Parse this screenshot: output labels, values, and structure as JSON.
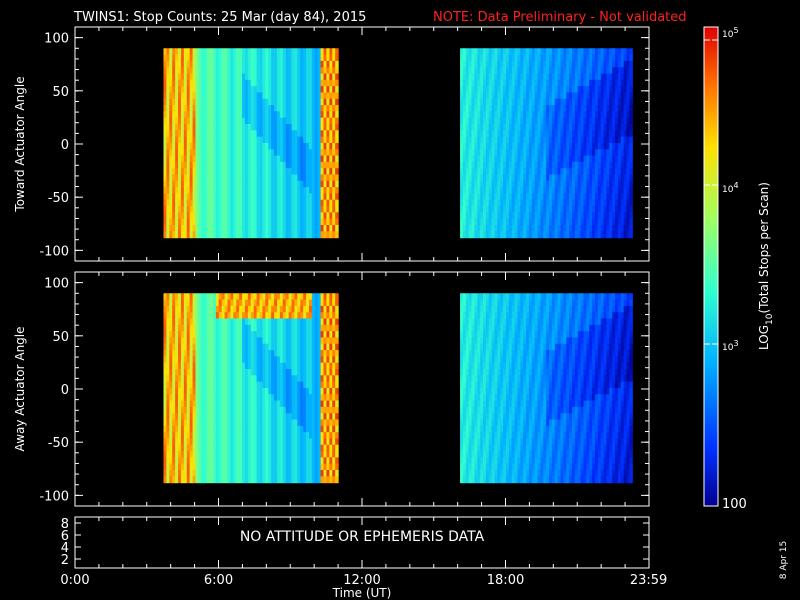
{
  "header": {
    "title": "TWINS1: Stop Counts: 25 Mar (day  84), 2015",
    "note": "NOTE: Data Preliminary - Not validated"
  },
  "chart_data": [
    {
      "type": "heatmap",
      "ylabel": "Toward Actuator Angle",
      "ylim": [
        -110,
        110
      ],
      "yticks": [
        "100",
        "50",
        "0",
        "-50",
        "-100"
      ],
      "xlim": [
        0,
        24
      ],
      "data_y_range": [
        -88,
        90
      ],
      "segments": [
        {
          "x_start": 3.7,
          "x_end": 11.0,
          "level": "high-left, medium-center, high-right edge"
        },
        {
          "x_start": 16.1,
          "x_end": 23.3,
          "level": "medium-left, low-right"
        }
      ]
    },
    {
      "type": "heatmap",
      "ylabel": "Away Actuator Angle",
      "ylim": [
        -110,
        110
      ],
      "yticks": [
        "100",
        "50",
        "0",
        "-50",
        "-100"
      ],
      "xlim": [
        0,
        24
      ],
      "data_y_range": [
        -88,
        90
      ],
      "segments": [
        {
          "x_start": 3.7,
          "x_end": 11.0,
          "level": "high-left, medium-center, high-right edge"
        },
        {
          "x_start": 16.1,
          "x_end": 23.3,
          "level": "medium-left, low-right"
        }
      ]
    }
  ],
  "ephemeris_panel": {
    "yticks": [
      "8",
      "6",
      "4",
      "2"
    ],
    "message": "NO ATTITUDE OR EPHEMERIS DATA"
  },
  "time_axis": {
    "ticks": [
      "0:00",
      "6:00",
      "12:00",
      "18:00",
      "23:59"
    ],
    "label": "Time (UT)"
  },
  "colorbar": {
    "label_prefix": "LOG",
    "label_sub": "10",
    "label_suffix": "(Total Stops per Scan)",
    "tick_100": "100",
    "tick_1e3_base": "10",
    "tick_1e3_exp": "3",
    "tick_1e4_base": "10",
    "tick_1e4_exp": "4",
    "tick_1e5_base": "10",
    "tick_1e5_exp": "5"
  },
  "date_stamp": "8 Apr 15",
  "colors": {
    "axes": "#ffffff",
    "note": "#ff2020",
    "background": "#000000"
  }
}
